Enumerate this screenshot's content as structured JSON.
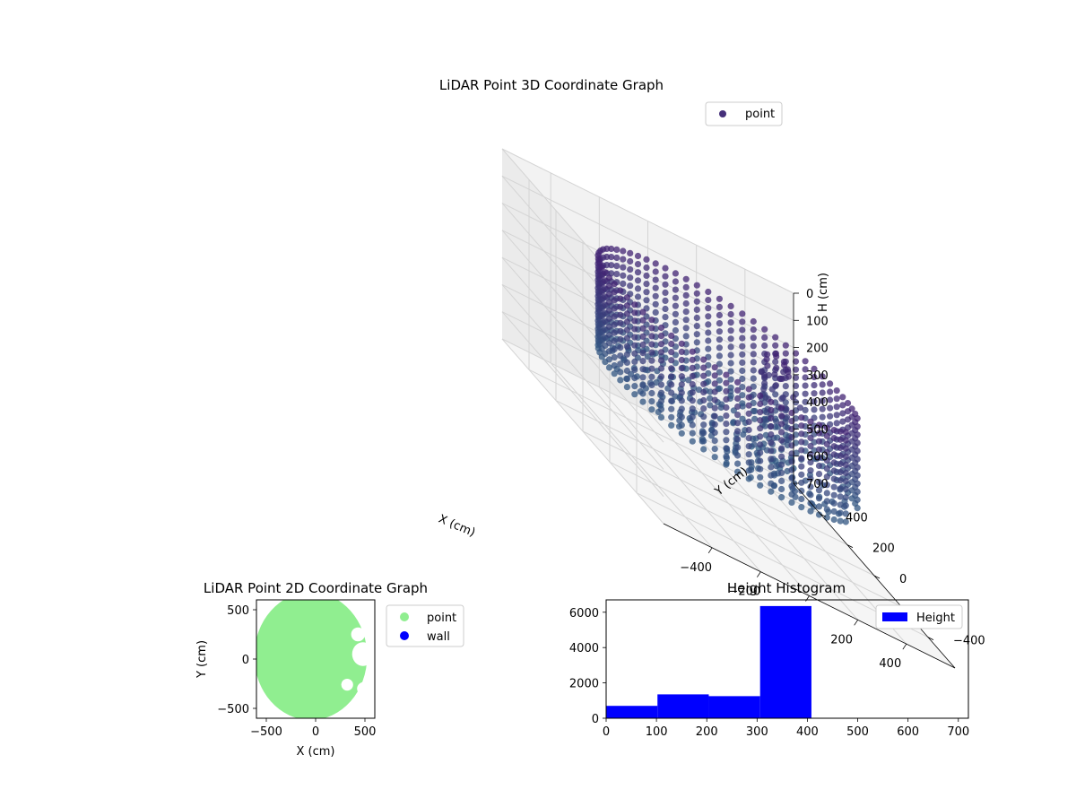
{
  "chart_data": [
    {
      "type": "scatter",
      "projection": "3d",
      "title": "LiDAR Point 3D Coordinate Graph",
      "xlabel": "X (cm)",
      "ylabel": "Y (cm)",
      "zlabel": "H (cm)",
      "xlim": [
        -600,
        600
      ],
      "ylim": [
        -600,
        600
      ],
      "zlim": [
        0,
        700
      ],
      "zinverted": true,
      "xticks": [
        "−400",
        "−200",
        "0",
        "200",
        "400"
      ],
      "yticks": [
        "−400",
        "−200",
        "0",
        "200",
        "400"
      ],
      "zticks": [
        "0",
        "100",
        "200",
        "300",
        "400",
        "500",
        "600",
        "700"
      ],
      "colormap": "viridis",
      "legend": "top-right",
      "grid": true,
      "series": [
        {
          "name": "point",
          "color": "#46307a",
          "description_points": {
            "wall_ring": {
              "radius": 470,
              "gap_from_deg": 305,
              "gap_to_deg": 340,
              "h_from": 100,
              "h_to": 450
            },
            "floor": {
              "h": 400,
              "radius_max": 420
            },
            "object_cluster": {
              "center_x": 250,
              "center_y": 100,
              "h_from": 100,
              "h_to": 500
            }
          }
        }
      ]
    },
    {
      "type": "scatter",
      "title": "LiDAR Point 2D Coordinate Graph",
      "xlabel": "X (cm)",
      "ylabel": "Y (cm)",
      "xlim": [
        -600,
        600
      ],
      "ylim": [
        -600,
        600
      ],
      "xticks": [
        "−500",
        "0",
        "500"
      ],
      "yticks": [
        "500",
        "0",
        "−500"
      ],
      "legend": "outside-right",
      "series": [
        {
          "name": "point",
          "color": "#90ee90"
        },
        {
          "name": "wall",
          "color": "#0000ff"
        }
      ]
    },
    {
      "type": "bar",
      "title": "Height Histogram",
      "bins": [
        [
          0,
          102
        ],
        [
          102,
          204
        ],
        [
          204,
          306
        ],
        [
          306,
          408
        ],
        [
          408,
          510
        ],
        [
          510,
          612
        ],
        [
          612,
          714
        ]
      ],
      "values": [
        700,
        1350,
        1250,
        6350,
        0,
        0,
        0
      ],
      "xlim": [
        0,
        720
      ],
      "ylim": [
        0,
        6700
      ],
      "xticks": [
        "0",
        "100",
        "200",
        "300",
        "400",
        "500",
        "600",
        "700"
      ],
      "yticks": [
        "0",
        "2000",
        "4000",
        "6000"
      ],
      "legend": "top-right",
      "series": [
        {
          "name": "Height",
          "color": "#0000ff"
        }
      ]
    }
  ]
}
